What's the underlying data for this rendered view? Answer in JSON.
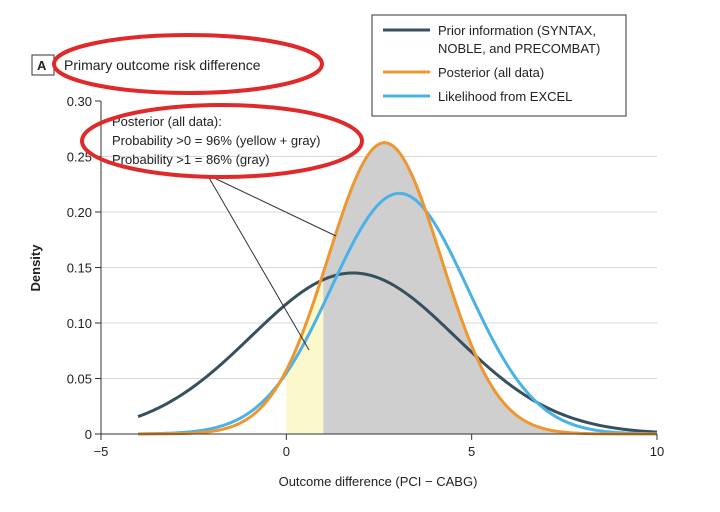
{
  "panel_letter": "A",
  "chart_data": {
    "type": "line",
    "title": "Primary outcome risk difference",
    "xlabel": "Outcome difference (PCI − CABG)",
    "ylabel": "Density",
    "xlim": [
      -5,
      10
    ],
    "ylim": [
      0,
      0.3
    ],
    "x_ticks": [
      "−5",
      "0",
      "5",
      "10"
    ],
    "y_ticks": [
      "0",
      "0.05",
      "0.10",
      "0.15",
      "0.20",
      "0.25",
      "0.30"
    ],
    "grid": "horizontal",
    "legend_position": "top-right",
    "series": [
      {
        "name": "Prior information (SYNTAX, NOBLE, and PRECOMBAT)",
        "name_lines": [
          "Prior information (SYNTAX,",
          "NOBLE, and PRECOMBAT)"
        ],
        "color": "#36505e",
        "mean": 1.8,
        "sd": 2.75,
        "x_range": [
          -4,
          10
        ]
      },
      {
        "name": "Posterior (all data)",
        "name_lines": [
          "Posterior (all data)"
        ],
        "color": "#f0962e",
        "mean": 2.65,
        "sd": 1.52,
        "x_range": [
          -4,
          10
        ]
      },
      {
        "name": "Likelihood from EXCEL",
        "name_lines": [
          "Likelihood from EXCEL"
        ],
        "color": "#4ab2e6",
        "mean": 3.05,
        "sd": 1.84,
        "x_range": [
          -4,
          10
        ]
      }
    ],
    "shaded_regions": [
      {
        "from": 0,
        "to": 1,
        "color": "#fbf8cc",
        "label": "yellow"
      },
      {
        "from": 1,
        "to": 10,
        "color": "#cfcfcf",
        "label": "gray"
      }
    ],
    "annotation": {
      "lines": [
        "Posterior (all data):",
        "Probability >0 = 96% (yellow + gray)",
        "Probability >1 = 86% (gray)"
      ]
    }
  },
  "highlight_color": "#e02a2a"
}
